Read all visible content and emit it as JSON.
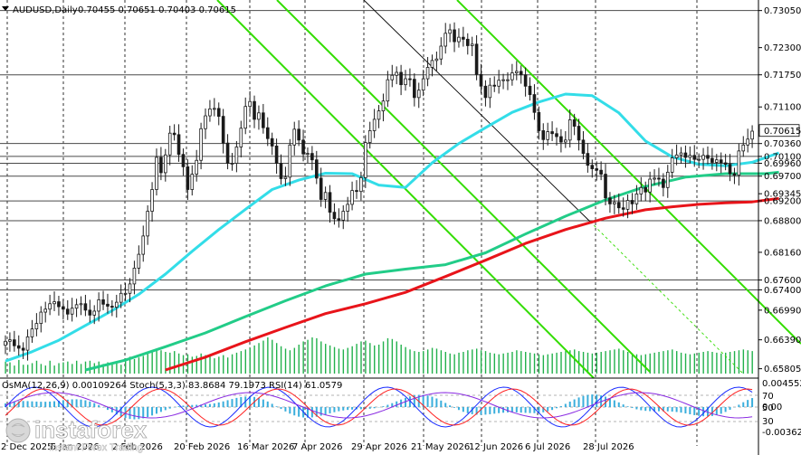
{
  "header": {
    "symbol": "AUDUSD,Daily",
    "ohlc": "0.70455 0.70651 0.70403 0.70615"
  },
  "indicator_header": "OsMA(12,26,9) 0.00109264 Stoch(5,3,3) 83.8684 79.1973 RSI(14) 61.0579",
  "watermark": {
    "brand": "instaforex",
    "tagline": "Instant Forex Trading"
  },
  "colors": {
    "background": "#ffffff",
    "candle": "#1a1a1a",
    "volume": "#22b14c",
    "ma_fast": "#33dde8",
    "ma_mid": "#22cc88",
    "ma_slow": "#e8141a",
    "channel": "#33dd00",
    "trendline": "#000000",
    "hline": "#4a4a4a",
    "osma": "#3aaedc",
    "stoch_main": "#1a2cff",
    "stoch_signal": "#ff2020",
    "rsi": "#8a2be2"
  },
  "chart_data": {
    "type": "candlestick",
    "instrument": "AUDUSD",
    "timeframe": "Daily",
    "ylim": [
      0.6578,
      0.7319
    ],
    "price_ticks": [
      "0.73050",
      "0.72300",
      "0.71750",
      "0.71100",
      "0.70360",
      "0.70100",
      "0.69960",
      "0.69700",
      "0.69345",
      "0.69200",
      "0.68800",
      "0.68160",
      "0.67600",
      "0.67400",
      "0.66990",
      "0.66390",
      "0.65805"
    ],
    "current_price": "0.70615",
    "horizontal_levels": [
      0.7305,
      0.7175,
      0.7036,
      0.701,
      0.6996,
      0.697,
      0.692,
      0.688,
      0.676,
      0.674
    ],
    "time_labels": [
      "2 Dec 2025",
      "5 Jan 2026",
      "2 Feb 2026",
      "20 Feb 2026",
      "16 Mar 2026",
      "7 Apr 2026",
      "29 Apr 2026",
      "21 May 2026",
      "12 Jun 2026",
      "6 Jul 2026",
      "28 Jul 2026"
    ],
    "osma_scale": [
      "0.0045527",
      "0.00",
      "-0.003621"
    ],
    "osc_levels": [
      "70",
      "50",
      "30"
    ],
    "close_series": [
      0.6636,
      0.6639,
      0.6627,
      0.6622,
      0.6618,
      0.6645,
      0.6661,
      0.6672,
      0.6695,
      0.6701,
      0.6712,
      0.6716,
      0.6706,
      0.6701,
      0.6691,
      0.6703,
      0.671,
      0.6712,
      0.6699,
      0.6689,
      0.6697,
      0.672,
      0.6711,
      0.6707,
      0.6705,
      0.6715,
      0.6733,
      0.6733,
      0.6752,
      0.6784,
      0.6812,
      0.6849,
      0.6899,
      0.6943,
      0.7008,
      0.6977,
      0.7013,
      0.7057,
      0.7054,
      0.7014,
      0.6989,
      0.6943,
      0.6974,
      0.7002,
      0.7066,
      0.7092,
      0.7106,
      0.7107,
      0.7091,
      0.7037,
      0.6996,
      0.6996,
      0.7029,
      0.7067,
      0.7111,
      0.7121,
      0.7085,
      0.7098,
      0.7068,
      0.7046,
      0.7031,
      0.6996,
      0.6965,
      0.6968,
      0.7033,
      0.7065,
      0.7043,
      0.7015,
      0.7016,
      0.7003,
      0.6966,
      0.6923,
      0.6937,
      0.6897,
      0.6884,
      0.6881,
      0.6899,
      0.6913,
      0.6941,
      0.6939,
      0.6967,
      0.7038,
      0.7062,
      0.7085,
      0.7102,
      0.7122,
      0.7165,
      0.7174,
      0.718,
      0.7155,
      0.7167,
      0.7166,
      0.7129,
      0.7144,
      0.7167,
      0.719,
      0.7204,
      0.7207,
      0.7233,
      0.7259,
      0.7266,
      0.7242,
      0.7251,
      0.7247,
      0.7234,
      0.7237,
      0.7176,
      0.7152,
      0.7129,
      0.7154,
      0.7152,
      0.7164,
      0.7165,
      0.7165,
      0.7179,
      0.7182,
      0.7175,
      0.7152,
      0.7135,
      0.7099,
      0.7062,
      0.7044,
      0.706,
      0.7056,
      0.705,
      0.7039,
      0.7043,
      0.7084,
      0.7071,
      0.7043,
      0.7016,
      0.6992,
      0.6985,
      0.6982,
      0.6974,
      0.6926,
      0.6914,
      0.6917,
      0.6906,
      0.6903,
      0.6921,
      0.6914,
      0.6934,
      0.6947,
      0.6938,
      0.6964,
      0.6966,
      0.6964,
      0.6947,
      0.6978,
      0.7007,
      0.7013,
      0.7017,
      0.7008,
      0.7012,
      0.7004,
      0.7004,
      0.7012,
      0.7006,
      0.6998,
      0.7003,
      0.6997,
      0.6994,
      0.6975,
      0.6972,
      0.7021,
      0.7033,
      0.7045,
      0.7061
    ],
    "volume_series": [
      15,
      14,
      10,
      17,
      11,
      11,
      13,
      16,
      12,
      10,
      16,
      10,
      13,
      14,
      15,
      12,
      16,
      12,
      15,
      16,
      13,
      15,
      12,
      14,
      14,
      15,
      11,
      19,
      21,
      18,
      20,
      22,
      26,
      27,
      31,
      29,
      27,
      26,
      28,
      25,
      23,
      24,
      21,
      22,
      25,
      23,
      22,
      19,
      21,
      23,
      20,
      24,
      26,
      28,
      30,
      32,
      35,
      38,
      41,
      45,
      42,
      38,
      34,
      31,
      29,
      32,
      36,
      40,
      42,
      45,
      44,
      40,
      37,
      35,
      33,
      31,
      30,
      32,
      34,
      37,
      40,
      41,
      38,
      35,
      36,
      40,
      44,
      43,
      40,
      36,
      33,
      30,
      28,
      27,
      28,
      30,
      32,
      31,
      29,
      27,
      25,
      24,
      26,
      27,
      29,
      30,
      31,
      29,
      28,
      26,
      25,
      24,
      25,
      26,
      27,
      29,
      28,
      27,
      26,
      25,
      24,
      23,
      24,
      25,
      26,
      27,
      28,
      29,
      30,
      28,
      27,
      26,
      25,
      26,
      27,
      28,
      29,
      30,
      31,
      29,
      27,
      25,
      24,
      23,
      24,
      25,
      26,
      27,
      28,
      29,
      30,
      28,
      26,
      25,
      24,
      25,
      26,
      27,
      28,
      27,
      26,
      25,
      26,
      27,
      28,
      29,
      30,
      29,
      28,
      27,
      26,
      25,
      26,
      27,
      28
    ],
    "moving_averages": [
      {
        "values": [
          0.6596,
          0.6615,
          0.6638,
          0.6668,
          0.6698,
          0.6731,
          0.6772,
          0.6818,
          0.6862,
          0.6903,
          0.6943,
          0.6962,
          0.6976,
          0.6975,
          0.6952,
          0.6947,
          0.6997,
          0.7036,
          0.7068,
          0.7099,
          0.712,
          0.7136,
          0.7133,
          0.7098,
          0.7041,
          0.7009,
          0.6994,
          0.6991,
          0.6998,
          0.7017
        ],
        "x_index": [
          0,
          6,
          12,
          18,
          24,
          30,
          36,
          42,
          48,
          54,
          60,
          66,
          72,
          78,
          84,
          90,
          96,
          102,
          108,
          114,
          120,
          126,
          132,
          138,
          144,
          150,
          156,
          162,
          168,
          174
        ]
      },
      {
        "values": [
          0.6578,
          0.6598,
          0.6625,
          0.6653,
          0.6686,
          0.6718,
          0.6748,
          0.6772,
          0.6782,
          0.6791,
          0.6815,
          0.6853,
          0.6889,
          0.6922,
          0.6949,
          0.6968,
          0.6975,
          0.6975,
          0.6975,
          0.6978
        ],
        "x_index": [
          18,
          27,
          36,
          45,
          54,
          63,
          72,
          81,
          90,
          99,
          108,
          117,
          126,
          135,
          144,
          153,
          162,
          168,
          171,
          174
        ]
      },
      {
        "values": [
          0.6578,
          0.6604,
          0.6635,
          0.6664,
          0.6692,
          0.6712,
          0.6735,
          0.6767,
          0.68,
          0.6834,
          0.6862,
          0.6885,
          0.6902,
          0.6908,
          0.6913,
          0.6916,
          0.6918,
          0.6925
        ],
        "x_index": [
          36,
          45,
          54,
          63,
          72,
          81,
          90,
          99,
          108,
          117,
          126,
          135,
          144,
          150,
          156,
          162,
          168,
          174
        ]
      }
    ]
  }
}
